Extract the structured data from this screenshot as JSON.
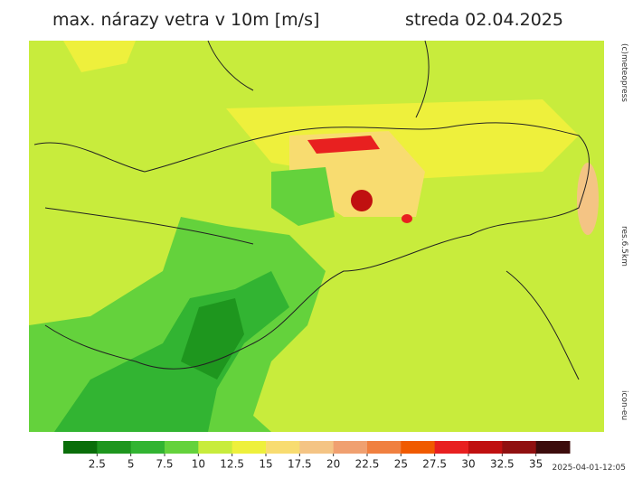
{
  "header": {
    "title": "max. nárazy vetra v 10m [m/s]",
    "date": "streda 02.04.2025"
  },
  "side_labels": {
    "copyright": "(c)meteopress",
    "resolution": "res.6.5km",
    "model": "icon-eu"
  },
  "colorbar": {
    "ticks": [
      2.5,
      5,
      7.5,
      10,
      12.5,
      15,
      17.5,
      20,
      22.5,
      25,
      27.5,
      30,
      32.5,
      35
    ],
    "colors": [
      "#0a6e0a",
      "#1e961e",
      "#32b432",
      "#64d23c",
      "#c8ec3c",
      "#eef03c",
      "#f8dc70",
      "#f4c484",
      "#f0a070",
      "#f08040",
      "#f05a00",
      "#e82020",
      "#c01010",
      "#901010",
      "#3c0c0c"
    ]
  },
  "timestamp": "2025-04-01-12:05"
}
